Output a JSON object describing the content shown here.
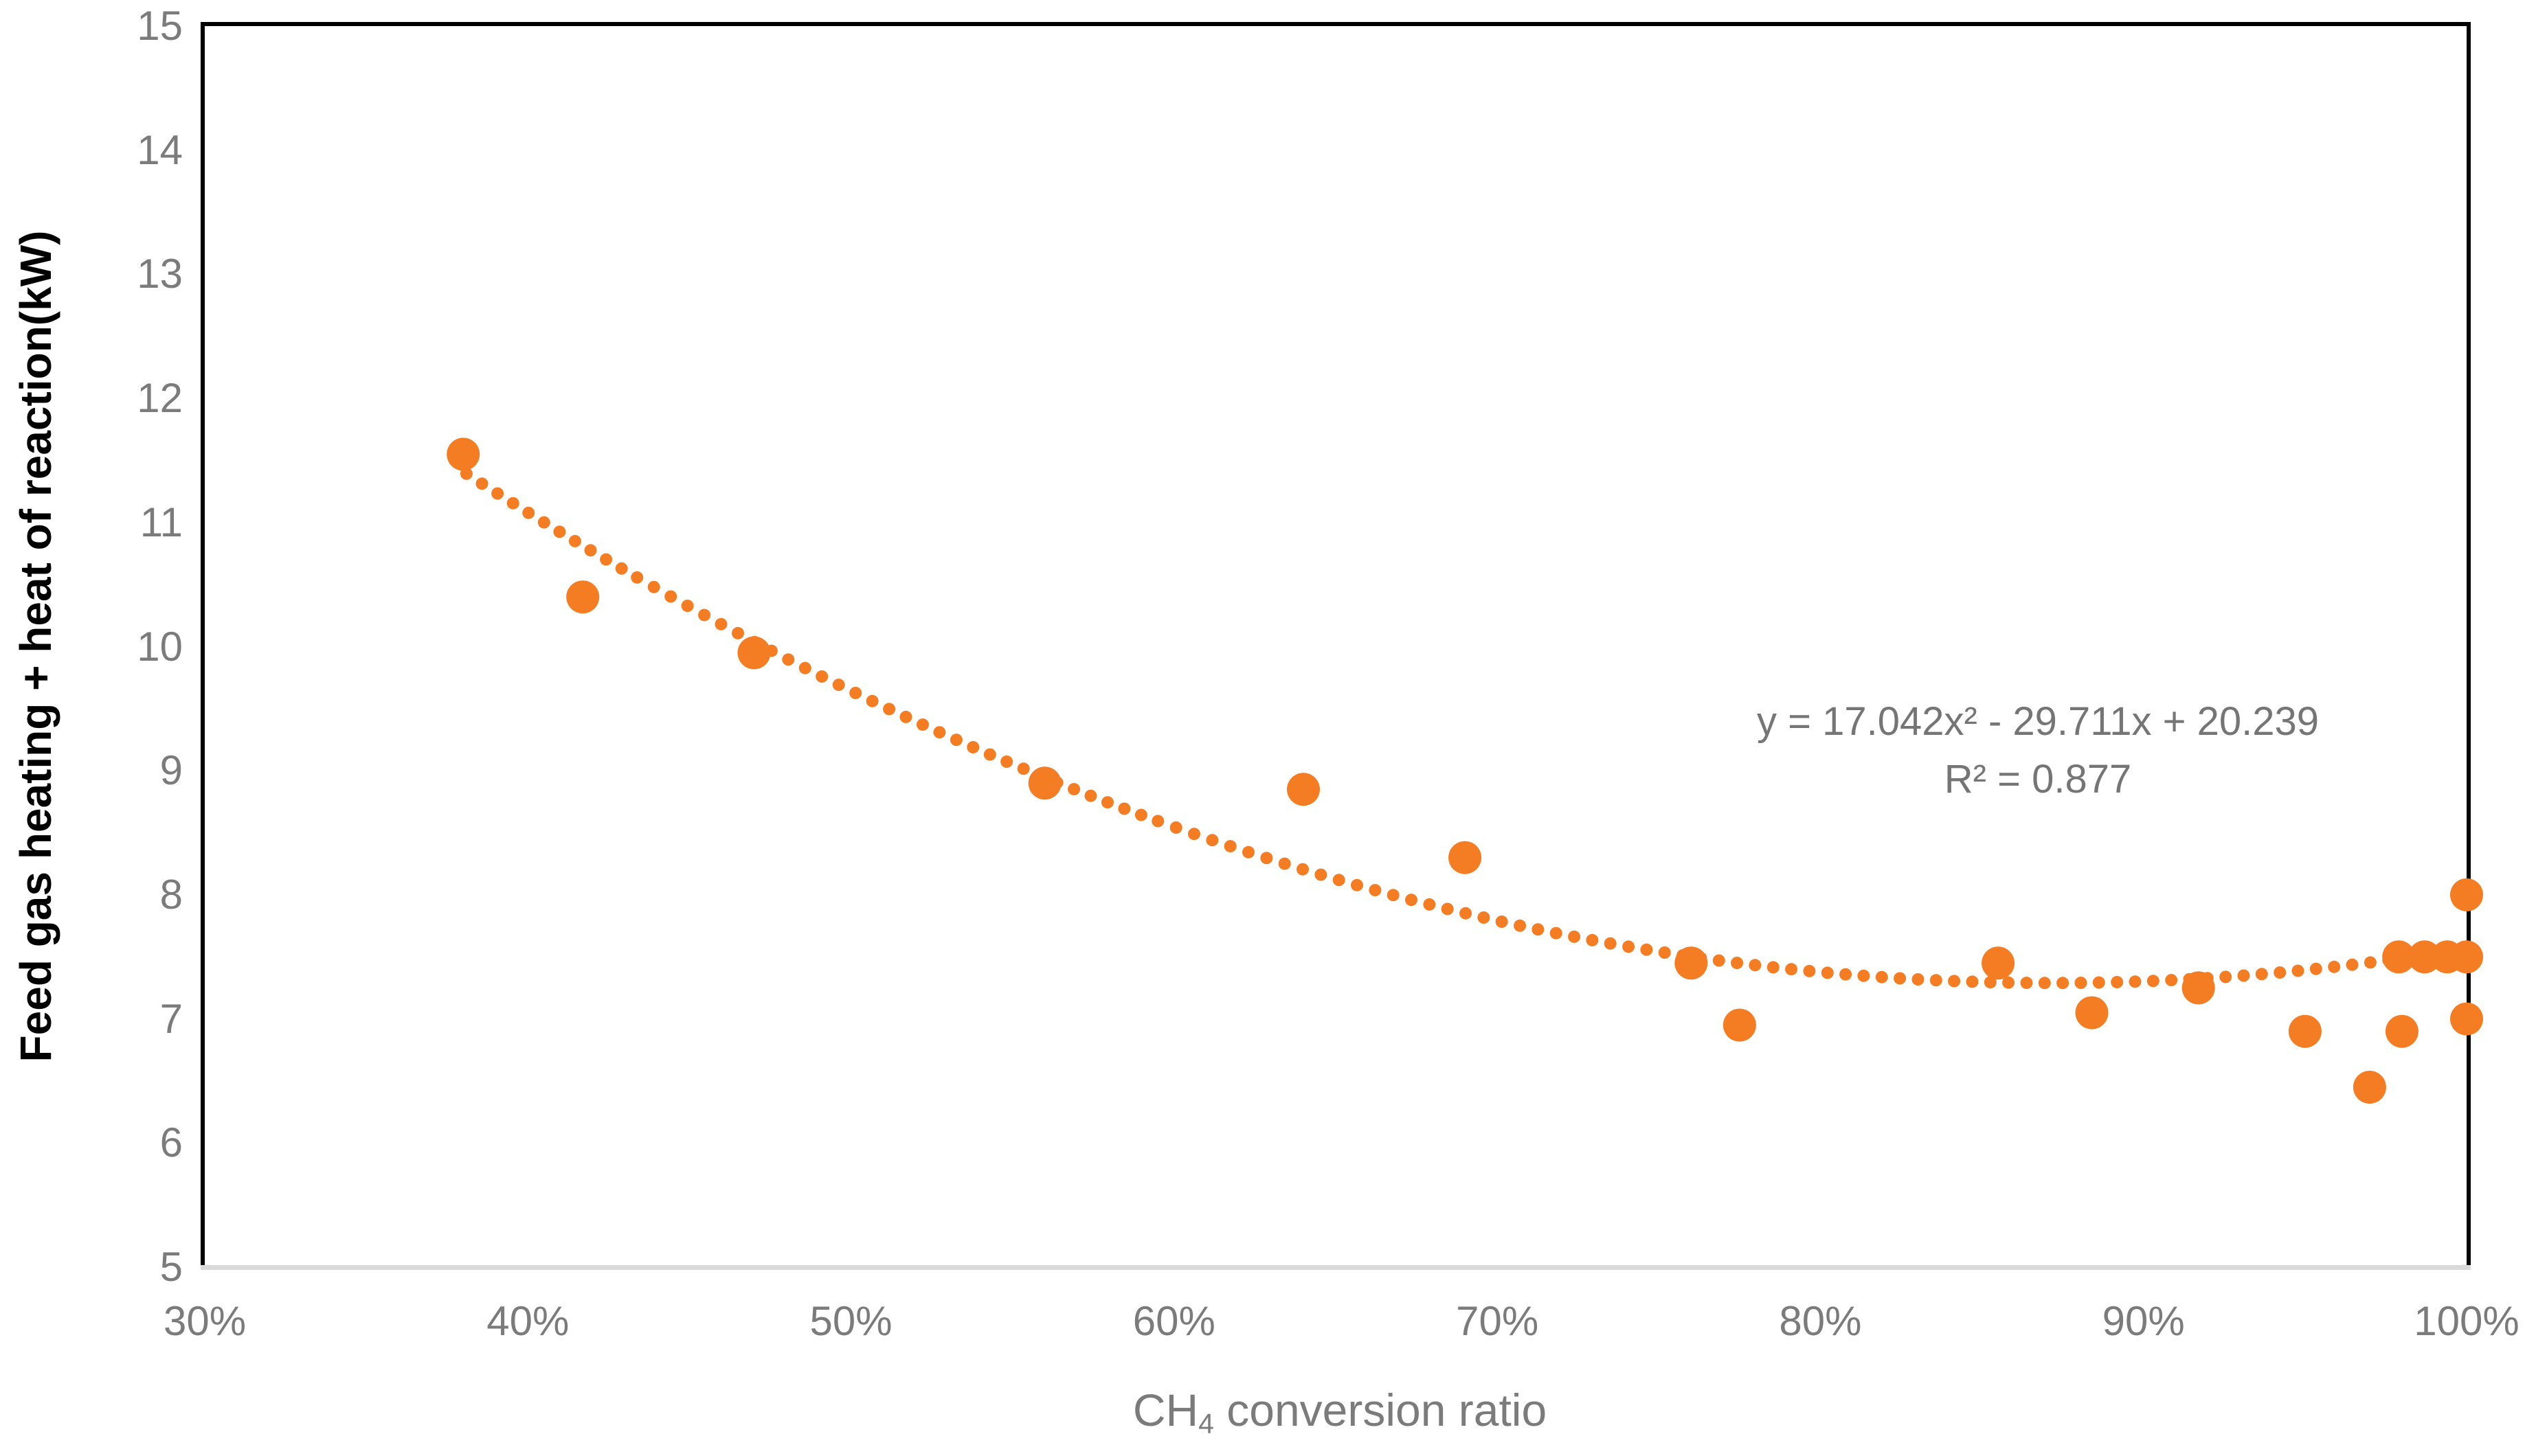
{
  "chart_data": {
    "type": "scatter",
    "title": "",
    "ylabel": "Feed gas heating + heat of reaction(kW)",
    "xlabel_prefix": "CH",
    "xlabel_sub": "4",
    "xlabel_suffix": " conversion ratio",
    "xlim_percent": [
      30,
      100
    ],
    "ylim": [
      5,
      15
    ],
    "x_ticks": [
      {
        "value": 30,
        "label": "30%"
      },
      {
        "value": 40,
        "label": "40%"
      },
      {
        "value": 50,
        "label": "50%"
      },
      {
        "value": 60,
        "label": "60%"
      },
      {
        "value": 70,
        "label": "70%"
      },
      {
        "value": 80,
        "label": "80%"
      },
      {
        "value": 90,
        "label": "90%"
      },
      {
        "value": 100,
        "label": "100%"
      }
    ],
    "y_ticks": [
      {
        "value": 5,
        "label": "5"
      },
      {
        "value": 6,
        "label": "6"
      },
      {
        "value": 7,
        "label": "7"
      },
      {
        "value": 8,
        "label": "8"
      },
      {
        "value": 9,
        "label": "9"
      },
      {
        "value": 10,
        "label": "10"
      },
      {
        "value": 11,
        "label": "11"
      },
      {
        "value": 12,
        "label": "12"
      },
      {
        "value": 13,
        "label": "13"
      },
      {
        "value": 14,
        "label": "14"
      },
      {
        "value": 15,
        "label": "15"
      }
    ],
    "grid": false,
    "legend": "none",
    "series": [
      {
        "name": "Feed gas heating + heat of reaction",
        "marker_color": "#F47D24",
        "points": [
          [
            38.0,
            11.55
          ],
          [
            41.7,
            10.4
          ],
          [
            47.0,
            9.95
          ],
          [
            56.0,
            8.9
          ],
          [
            64.0,
            8.85
          ],
          [
            69.0,
            8.3
          ],
          [
            76.0,
            7.45
          ],
          [
            77.5,
            6.95
          ],
          [
            85.5,
            7.45
          ],
          [
            88.4,
            7.05
          ],
          [
            91.7,
            7.25
          ],
          [
            95.0,
            6.9
          ],
          [
            97.0,
            6.45
          ],
          [
            97.9,
            7.5
          ],
          [
            98.0,
            6.9
          ],
          [
            98.7,
            7.5
          ],
          [
            99.4,
            7.5
          ],
          [
            100.0,
            7.5
          ],
          [
            100.0,
            7.0
          ],
          [
            100.0,
            8.0
          ]
        ]
      }
    ],
    "trendline": {
      "type": "polynomial_order2",
      "equation_text": "y = 17.042x² - 29.711x + 20.239",
      "r_squared_text": "R² = 0.877",
      "a": 17.042,
      "b": -29.711,
      "c": 20.239,
      "x_start_fraction": 0.381,
      "x_end_fraction": 1.003,
      "style": "dotted",
      "color": "#F47D24"
    },
    "colors": {
      "axis_text": "#7b7b7b",
      "equation_text": "#757575",
      "plot_border": "#000000",
      "x_axis_line": "#d9d9d9"
    }
  }
}
